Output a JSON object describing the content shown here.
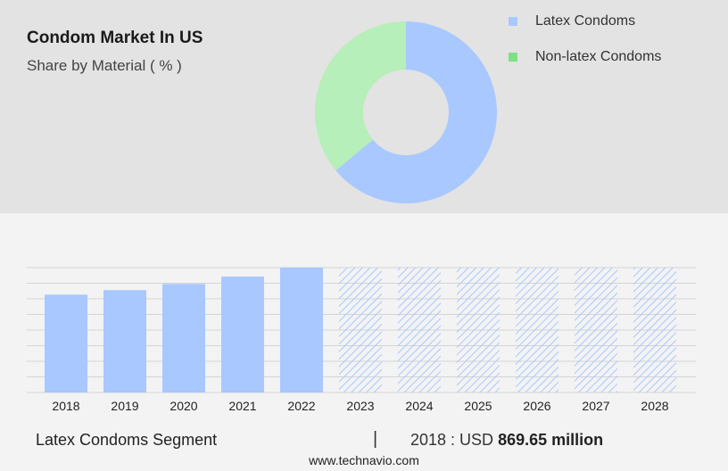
{
  "header": {
    "title": "Condom Market In US",
    "subtitle": "Share by Material ( % )"
  },
  "colors": {
    "latex": "#a8c8ff",
    "non_latex": "#b6efb9",
    "non_latex_swatch": "#7ee083",
    "forecast_hatch": "#a8c8ff"
  },
  "chart_data": [
    {
      "type": "pie",
      "variant": "donut",
      "slices": [
        {
          "name": "Latex Condoms",
          "value": 64
        },
        {
          "name": "Non-latex Condoms",
          "value": 36
        }
      ],
      "legend": [
        "Latex Condoms",
        "Non-latex Condoms"
      ],
      "legend_placement": "top-right"
    },
    {
      "type": "bar",
      "categories": [
        "2018",
        "2019",
        "2020",
        "2021",
        "2022",
        "2023",
        "2024",
        "2025",
        "2026",
        "2027",
        "2028"
      ],
      "values": [
        869.65,
        910,
        965,
        1030,
        1110,
        1110,
        1110,
        1110,
        1110,
        1110,
        1110
      ],
      "forecast": [
        false,
        false,
        false,
        false,
        false,
        true,
        true,
        true,
        true,
        true,
        true
      ],
      "ylim": [
        0,
        1110
      ],
      "grid": true
    }
  ],
  "footer": {
    "segment_label": "Latex Condoms Segment",
    "separator": "|",
    "value_prefix": "2018 : USD",
    "value": "869.65 million",
    "source": "www.technavio.com"
  }
}
